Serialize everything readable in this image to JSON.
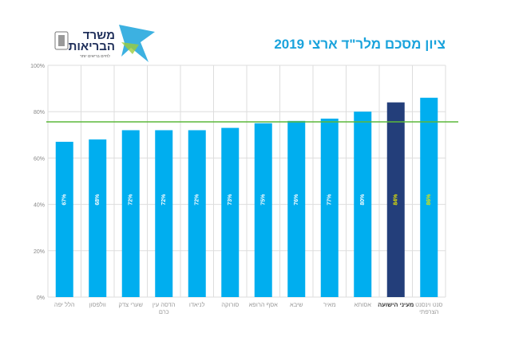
{
  "header": {
    "ministry_name": "משרד הבריאות",
    "ministry_slogan": "לחיים בריאים יותר"
  },
  "chart_data": {
    "type": "bar",
    "title": "ציון מסכם מלר\"ד ארצי 2019",
    "categories": [
      "הלל יפה",
      "וולפסון",
      "שערי צדק",
      "הדסה עין כרם",
      "לניאדו",
      "סורוקה",
      "אסף הרופא",
      "שיבא",
      "מאיר",
      "אסותא",
      "מעיני הישועה",
      "סנט וינסנט הצרפתי"
    ],
    "values": [
      67,
      68,
      72,
      72,
      72,
      73,
      75,
      76,
      77,
      80,
      84,
      86
    ],
    "value_labels": [
      "67%",
      "68%",
      "72%",
      "72%",
      "72%",
      "73%",
      "75%",
      "76%",
      "77%",
      "80%",
      "84%",
      "86%"
    ],
    "highlight_index": 10,
    "reference_line": 75.6,
    "ylim": [
      0,
      100
    ],
    "yticks": [
      "0%",
      "20%",
      "40%",
      "60%",
      "80%",
      "100%"
    ],
    "grid": true,
    "colors": {
      "bar": "#00aeef",
      "highlight": "#233e7a",
      "reference": "#5cb83a",
      "label": "#ffffff",
      "label_highlight": "#e6e600"
    }
  }
}
